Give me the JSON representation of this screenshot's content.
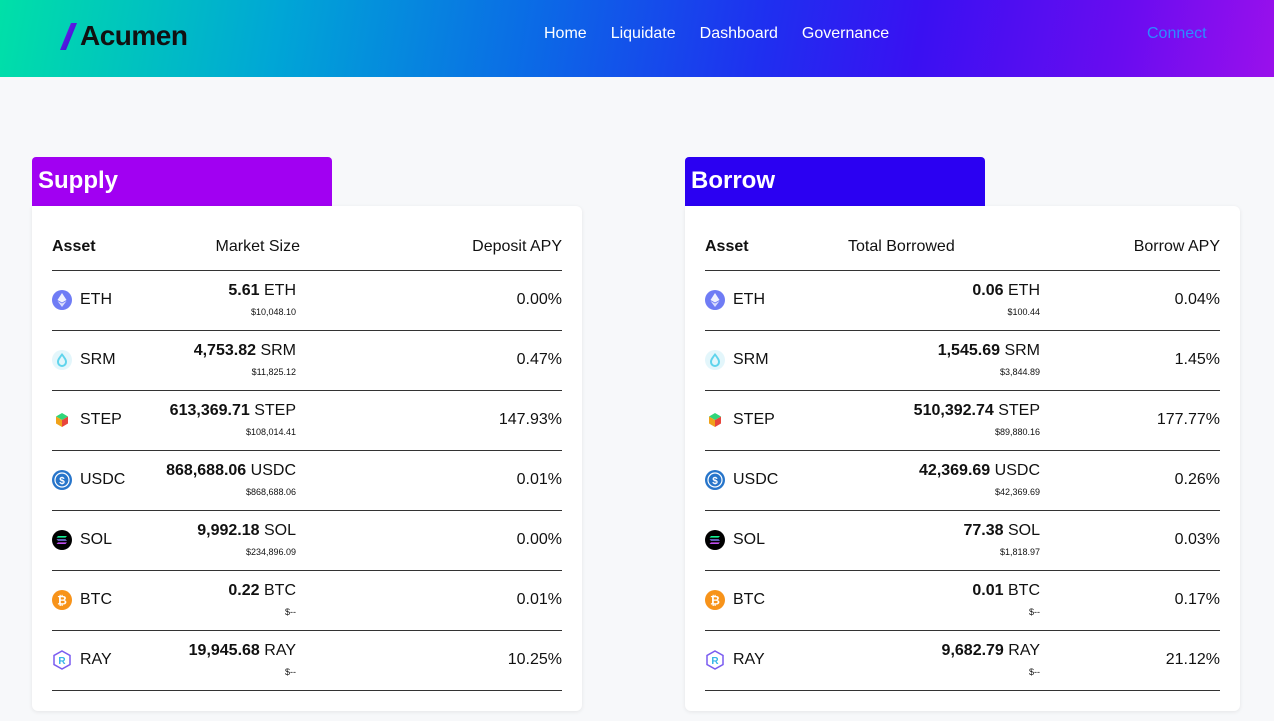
{
  "brand": {
    "name": "Acumen"
  },
  "nav": {
    "items": [
      "Home",
      "Liquidate",
      "Dashboard",
      "Governance"
    ]
  },
  "connect_label": "Connect",
  "colors": {
    "supply": "#a100f2",
    "borrow": "#2b00f2",
    "connect": "#2b8cff"
  },
  "supply": {
    "title": "Supply",
    "columns": [
      "Asset",
      "Market Size",
      "Deposit APY"
    ],
    "rows": [
      {
        "symbol": "ETH",
        "icon": "eth-icon",
        "amount": "5.61",
        "usd": "$10,048.10",
        "apy": "0.00%"
      },
      {
        "symbol": "SRM",
        "icon": "srm-icon",
        "amount": "4,753.82",
        "usd": "$11,825.12",
        "apy": "0.47%"
      },
      {
        "symbol": "STEP",
        "icon": "step-icon",
        "amount": "613,369.71",
        "usd": "$108,014.41",
        "apy": "147.93%"
      },
      {
        "symbol": "USDC",
        "icon": "usdc-icon",
        "amount": "868,688.06",
        "usd": "$868,688.06",
        "apy": "0.01%"
      },
      {
        "symbol": "SOL",
        "icon": "sol-icon",
        "amount": "9,992.18",
        "usd": "$234,896.09",
        "apy": "0.00%"
      },
      {
        "symbol": "BTC",
        "icon": "btc-icon",
        "amount": "0.22",
        "usd": "$--",
        "apy": "0.01%"
      },
      {
        "symbol": "RAY",
        "icon": "ray-icon",
        "amount": "19,945.68",
        "usd": "$--",
        "apy": "10.25%"
      }
    ]
  },
  "borrow": {
    "title": "Borrow",
    "columns": [
      "Asset",
      "Total Borrowed",
      "Borrow APY"
    ],
    "rows": [
      {
        "symbol": "ETH",
        "icon": "eth-icon",
        "amount": "0.06",
        "usd": "$100.44",
        "apy": "0.04%"
      },
      {
        "symbol": "SRM",
        "icon": "srm-icon",
        "amount": "1,545.69",
        "usd": "$3,844.89",
        "apy": "1.45%"
      },
      {
        "symbol": "STEP",
        "icon": "step-icon",
        "amount": "510,392.74",
        "usd": "$89,880.16",
        "apy": "177.77%"
      },
      {
        "symbol": "USDC",
        "icon": "usdc-icon",
        "amount": "42,369.69",
        "usd": "$42,369.69",
        "apy": "0.26%"
      },
      {
        "symbol": "SOL",
        "icon": "sol-icon",
        "amount": "77.38",
        "usd": "$1,818.97",
        "apy": "0.03%"
      },
      {
        "symbol": "BTC",
        "icon": "btc-icon",
        "amount": "0.01",
        "usd": "$--",
        "apy": "0.17%"
      },
      {
        "symbol": "RAY",
        "icon": "ray-icon",
        "amount": "9,682.79",
        "usd": "$--",
        "apy": "21.12%"
      }
    ]
  }
}
